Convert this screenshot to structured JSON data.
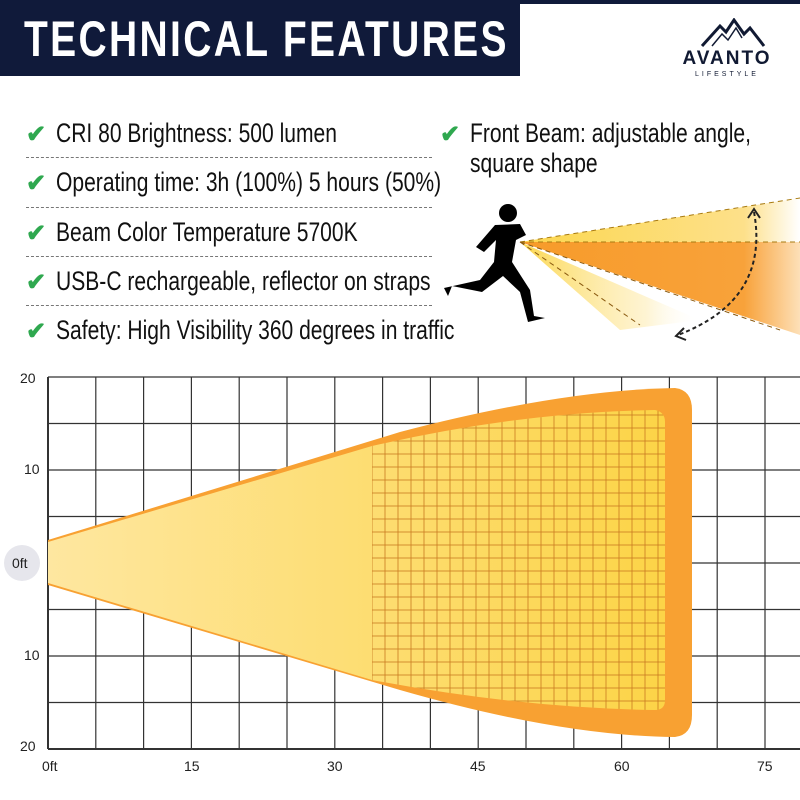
{
  "header": {
    "title": "TECHNICAL FEATURES"
  },
  "logo": {
    "name": "AVANTO",
    "tagline": "LIFESTYLE",
    "icon": "mountain-icon"
  },
  "features": [
    "CRI 80 Brightness: 500 lumen",
    "Operating time: 3h (100%) 5 hours (50%)",
    "Beam Color Temperature 5700K",
    "USB-C rechargeable, reflector on straps",
    "Safety: High Visibility 360 degrees in traffic"
  ],
  "front_beam": {
    "line1": "Front Beam: adjustable angle,",
    "line2": "square shape"
  },
  "colors": {
    "navy": "#101a3a",
    "check": "#2fa84f",
    "beam_yellow": "#fcd74e",
    "beam_orange": "#f79b2a"
  },
  "beam_chart": {
    "x_ticks": [
      "0ft",
      "15",
      "30",
      "45",
      "60",
      "75"
    ],
    "y_ticks_top": [
      "20",
      "10"
    ],
    "y_center": "0ft",
    "y_ticks_bottom": [
      "10",
      "20"
    ]
  }
}
